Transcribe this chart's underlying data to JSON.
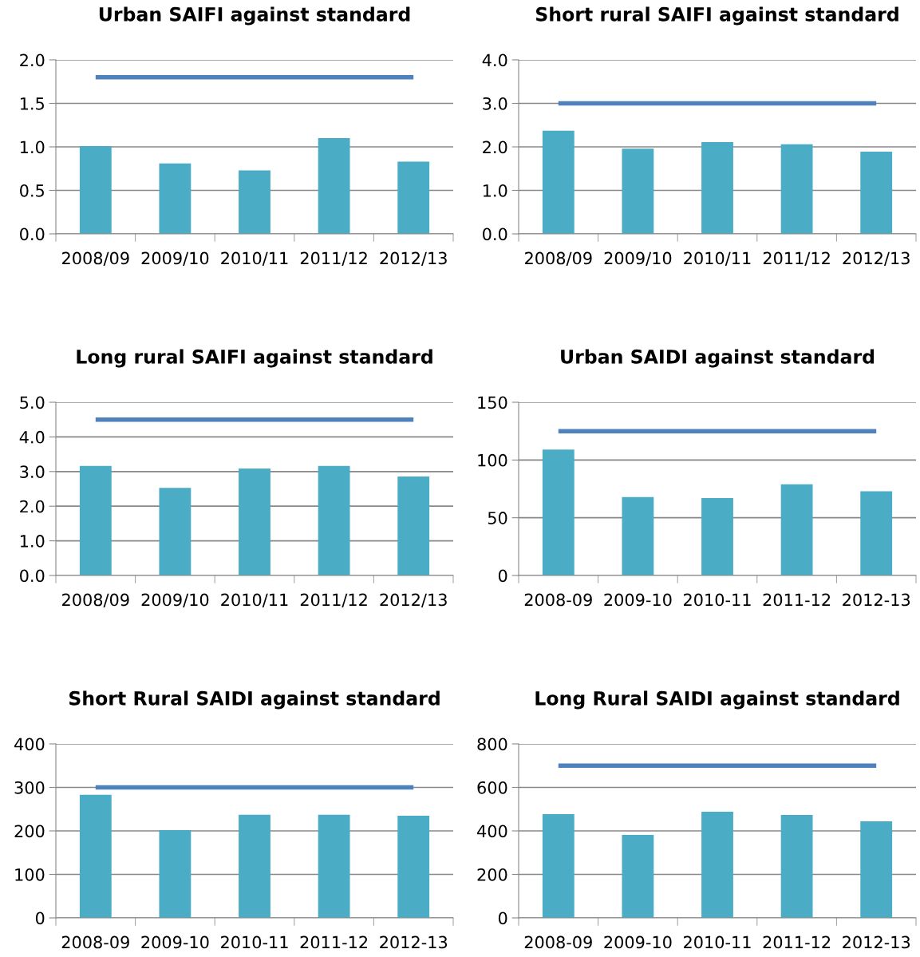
{
  "chart_data": [
    {
      "type": "bar",
      "title": "Urban SAIFI against standard",
      "categories": [
        "2008/09",
        "2009/10",
        "2010/11",
        "2011/12",
        "2012/13"
      ],
      "ylim": [
        0,
        2
      ],
      "yticks": [
        {
          "value": 0,
          "label": "0.0"
        },
        {
          "value": 0.5,
          "label": "0.5"
        },
        {
          "value": 1,
          "label": "1.0"
        },
        {
          "value": 1.5,
          "label": "1.5"
        },
        {
          "value": 2,
          "label": "2.0"
        }
      ],
      "grid": "y",
      "series": [
        {
          "color": "#4bacc6",
          "values": [
            1.01,
            0.81,
            0.73,
            1.1,
            0.83
          ]
        },
        {
          "type": "line",
          "color": "#4f81bd",
          "values": [
            1.8,
            1.8,
            1.8,
            1.8,
            1.8
          ]
        }
      ]
    },
    {
      "type": "bar",
      "title": "Short rural SAIFI against standard",
      "categories": [
        "2008/09",
        "2009/10",
        "2010/11",
        "2011/12",
        "2012/13"
      ],
      "ylim": [
        0,
        4
      ],
      "yticks": [
        {
          "value": 0,
          "label": "0.0"
        },
        {
          "value": 1,
          "label": "1.0"
        },
        {
          "value": 2,
          "label": "2.0"
        },
        {
          "value": 3,
          "label": "3.0"
        },
        {
          "value": 4,
          "label": "4.0"
        }
      ],
      "grid": "y",
      "series": [
        {
          "color": "#4bacc6",
          "values": [
            2.37,
            1.96,
            2.11,
            2.06,
            1.89
          ]
        },
        {
          "type": "line",
          "color": "#4f81bd",
          "values": [
            3.0,
            3.0,
            3.0,
            3.0,
            3.0
          ]
        }
      ]
    },
    {
      "type": "bar",
      "title": "Long rural SAIFI against standard",
      "categories": [
        "2008/09",
        "2009/10",
        "2010/11",
        "2011/12",
        "2012/13"
      ],
      "ylim": [
        0,
        5
      ],
      "yticks": [
        {
          "value": 0,
          "label": "0.0"
        },
        {
          "value": 1,
          "label": "1.0"
        },
        {
          "value": 2,
          "label": "2.0"
        },
        {
          "value": 3,
          "label": "3.0"
        },
        {
          "value": 4,
          "label": "4.0"
        },
        {
          "value": 5,
          "label": "5.0"
        }
      ],
      "grid": "y",
      "series": [
        {
          "color": "#4bacc6",
          "values": [
            3.16,
            2.53,
            3.09,
            3.16,
            2.86
          ]
        },
        {
          "type": "line",
          "color": "#4f81bd",
          "values": [
            4.5,
            4.5,
            4.5,
            4.5,
            4.5
          ]
        }
      ]
    },
    {
      "type": "bar",
      "title": "Urban SAIDI against standard",
      "categories": [
        "2008-09",
        "2009-10",
        "2010-11",
        "2011-12",
        "2012-13"
      ],
      "ylim": [
        0,
        150
      ],
      "yticks": [
        0,
        50,
        100,
        150
      ],
      "grid": "y",
      "series": [
        {
          "color": "#4bacc6",
          "values": [
            109,
            68,
            67,
            79,
            73
          ]
        },
        {
          "type": "line",
          "color": "#4f81bd",
          "values": [
            125,
            125,
            125,
            125,
            125
          ]
        }
      ]
    },
    {
      "type": "bar",
      "title": "Short Rural SAIDI against standard",
      "categories": [
        "2008-09",
        "2009-10",
        "2010-11",
        "2011-12",
        "2012-13"
      ],
      "ylim": [
        0,
        400
      ],
      "yticks": [
        0,
        100,
        200,
        300,
        400
      ],
      "grid": "y",
      "series": [
        {
          "color": "#4bacc6",
          "values": [
            283,
            202,
            237,
            237,
            235
          ]
        },
        {
          "type": "line",
          "color": "#4f81bd",
          "values": [
            300,
            300,
            300,
            300,
            300
          ]
        }
      ]
    },
    {
      "type": "bar",
      "title": "Long Rural SAIDI against standard",
      "categories": [
        "2008-09",
        "2009-10",
        "2010-11",
        "2011-12",
        "2012-13"
      ],
      "ylim": [
        0,
        800
      ],
      "yticks": [
        0,
        200,
        400,
        600,
        800
      ],
      "grid": "y",
      "series": [
        {
          "color": "#4bacc6",
          "values": [
            477,
            382,
            488,
            473,
            444
          ]
        },
        {
          "type": "line",
          "color": "#4f81bd",
          "values": [
            700,
            700,
            700,
            700,
            700
          ]
        }
      ]
    }
  ]
}
